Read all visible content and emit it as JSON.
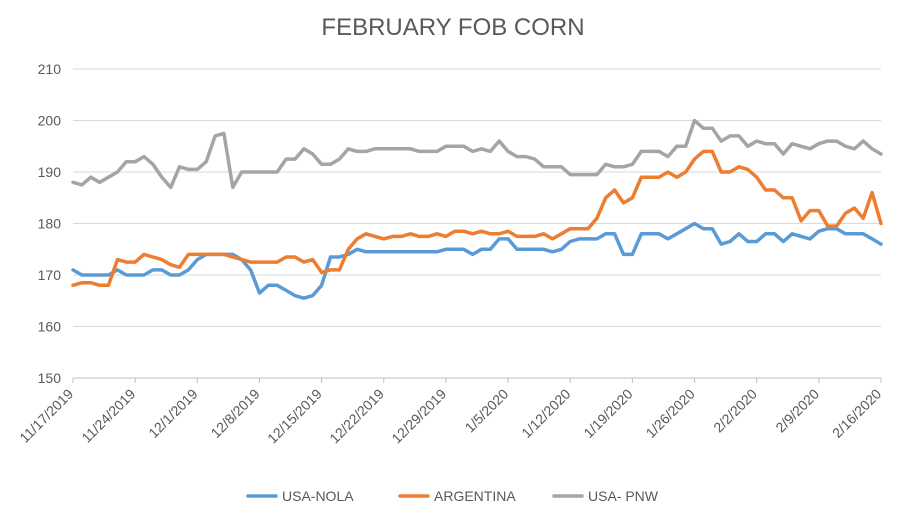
{
  "chart_data": {
    "type": "line",
    "title": "FEBRUARY FOB CORN",
    "xlabel": "",
    "ylabel": "",
    "ylim": [
      150,
      210
    ],
    "yticks": [
      150,
      160,
      170,
      180,
      190,
      200,
      210
    ],
    "xlim": [
      "2019-11-17",
      "2020-02-16"
    ],
    "xticks": [
      "11/17/2019",
      "11/24/2019",
      "12/1/2019",
      "12/8/2019",
      "12/15/2019",
      "12/22/2019",
      "12/29/2019",
      "1/5/2020",
      "1/12/2020",
      "1/19/2020",
      "1/26/2020",
      "2/2/2020",
      "2/9/2020",
      "2/16/2020"
    ],
    "grid": "horizontal",
    "legend": "bottom",
    "series": [
      {
        "name": "USA-NOLA",
        "color": "#5b9bd5",
        "points": [
          [
            "2019-11-17",
            171
          ],
          [
            "2019-11-18",
            170
          ],
          [
            "2019-11-19",
            170
          ],
          [
            "2019-11-20",
            170
          ],
          [
            "2019-11-21",
            170
          ],
          [
            "2019-11-22",
            171
          ],
          [
            "2019-11-23",
            170
          ],
          [
            "2019-11-24",
            170
          ],
          [
            "2019-11-25",
            170
          ],
          [
            "2019-11-26",
            171
          ],
          [
            "2019-11-27",
            171
          ],
          [
            "2019-11-28",
            170
          ],
          [
            "2019-11-29",
            170
          ],
          [
            "2019-11-30",
            171
          ],
          [
            "2019-12-01",
            173
          ],
          [
            "2019-12-02",
            174
          ],
          [
            "2019-12-03",
            174
          ],
          [
            "2019-12-04",
            174
          ],
          [
            "2019-12-05",
            174
          ],
          [
            "2019-12-06",
            173
          ],
          [
            "2019-12-07",
            171
          ],
          [
            "2019-12-08",
            166.5
          ],
          [
            "2019-12-09",
            168
          ],
          [
            "2019-12-10",
            168
          ],
          [
            "2019-12-11",
            167
          ],
          [
            "2019-12-12",
            166
          ],
          [
            "2019-12-13",
            165.5
          ],
          [
            "2019-12-14",
            166
          ],
          [
            "2019-12-15",
            168
          ],
          [
            "2019-12-16",
            173.5
          ],
          [
            "2019-12-17",
            173.5
          ],
          [
            "2019-12-18",
            174
          ],
          [
            "2019-12-19",
            175
          ],
          [
            "2019-12-20",
            174.5
          ],
          [
            "2019-12-21",
            174.5
          ],
          [
            "2019-12-22",
            174.5
          ],
          [
            "2019-12-23",
            174.5
          ],
          [
            "2019-12-24",
            174.5
          ],
          [
            "2019-12-25",
            174.5
          ],
          [
            "2019-12-26",
            174.5
          ],
          [
            "2019-12-27",
            174.5
          ],
          [
            "2019-12-28",
            174.5
          ],
          [
            "2019-12-29",
            175
          ],
          [
            "2019-12-30",
            175
          ],
          [
            "2019-12-31",
            175
          ],
          [
            "2020-01-01",
            174
          ],
          [
            "2020-01-02",
            175
          ],
          [
            "2020-01-03",
            175
          ],
          [
            "2020-01-04",
            177
          ],
          [
            "2020-01-05",
            177
          ],
          [
            "2020-01-06",
            175
          ],
          [
            "2020-01-07",
            175
          ],
          [
            "2020-01-08",
            175
          ],
          [
            "2020-01-09",
            175
          ],
          [
            "2020-01-10",
            174.5
          ],
          [
            "2020-01-11",
            175
          ],
          [
            "2020-01-12",
            176.5
          ],
          [
            "2020-01-13",
            177
          ],
          [
            "2020-01-14",
            177
          ],
          [
            "2020-01-15",
            177
          ],
          [
            "2020-01-16",
            178
          ],
          [
            "2020-01-17",
            178
          ],
          [
            "2020-01-18",
            174
          ],
          [
            "2020-01-19",
            174
          ],
          [
            "2020-01-20",
            178
          ],
          [
            "2020-01-21",
            178
          ],
          [
            "2020-01-22",
            178
          ],
          [
            "2020-01-23",
            177
          ],
          [
            "2020-01-24",
            178
          ],
          [
            "2020-01-25",
            179
          ],
          [
            "2020-01-26",
            180
          ],
          [
            "2020-01-27",
            179
          ],
          [
            "2020-01-28",
            179
          ],
          [
            "2020-01-29",
            176
          ],
          [
            "2020-01-30",
            176.5
          ],
          [
            "2020-01-31",
            178
          ],
          [
            "2020-02-01",
            176.5
          ],
          [
            "2020-02-02",
            176.5
          ],
          [
            "2020-02-03",
            178
          ],
          [
            "2020-02-04",
            178
          ],
          [
            "2020-02-05",
            176.5
          ],
          [
            "2020-02-06",
            178
          ],
          [
            "2020-02-07",
            177.5
          ],
          [
            "2020-02-08",
            177
          ],
          [
            "2020-02-09",
            178.5
          ],
          [
            "2020-02-10",
            179
          ],
          [
            "2020-02-11",
            179
          ],
          [
            "2020-02-12",
            178
          ],
          [
            "2020-02-13",
            178
          ],
          [
            "2020-02-14",
            178
          ],
          [
            "2020-02-15",
            177
          ],
          [
            "2020-02-16",
            176
          ]
        ]
      },
      {
        "name": "ARGENTINA",
        "color": "#ed7d31",
        "points": [
          [
            "2019-11-17",
            168
          ],
          [
            "2019-11-18",
            168.5
          ],
          [
            "2019-11-19",
            168.5
          ],
          [
            "2019-11-20",
            168
          ],
          [
            "2019-11-21",
            168
          ],
          [
            "2019-11-22",
            173
          ],
          [
            "2019-11-23",
            172.5
          ],
          [
            "2019-11-24",
            172.5
          ],
          [
            "2019-11-25",
            174
          ],
          [
            "2019-11-26",
            173.5
          ],
          [
            "2019-11-27",
            173
          ],
          [
            "2019-11-28",
            172
          ],
          [
            "2019-11-29",
            171.5
          ],
          [
            "2019-11-30",
            174
          ],
          [
            "2019-12-01",
            174
          ],
          [
            "2019-12-02",
            174
          ],
          [
            "2019-12-03",
            174
          ],
          [
            "2019-12-04",
            174
          ],
          [
            "2019-12-05",
            173.5
          ],
          [
            "2019-12-06",
            173
          ],
          [
            "2019-12-07",
            172.5
          ],
          [
            "2019-12-08",
            172.5
          ],
          [
            "2019-12-09",
            172.5
          ],
          [
            "2019-12-10",
            172.5
          ],
          [
            "2019-12-11",
            173.5
          ],
          [
            "2019-12-12",
            173.5
          ],
          [
            "2019-12-13",
            172.5
          ],
          [
            "2019-12-14",
            173
          ],
          [
            "2019-12-15",
            170.5
          ],
          [
            "2019-12-16",
            171
          ],
          [
            "2019-12-17",
            171
          ],
          [
            "2019-12-18",
            175
          ],
          [
            "2019-12-19",
            177
          ],
          [
            "2019-12-20",
            178
          ],
          [
            "2019-12-21",
            177.5
          ],
          [
            "2019-12-22",
            177
          ],
          [
            "2019-12-23",
            177.5
          ],
          [
            "2019-12-24",
            177.5
          ],
          [
            "2019-12-25",
            178
          ],
          [
            "2019-12-26",
            177.5
          ],
          [
            "2019-12-27",
            177.5
          ],
          [
            "2019-12-28",
            178
          ],
          [
            "2019-12-29",
            177.5
          ],
          [
            "2019-12-30",
            178.5
          ],
          [
            "2019-12-31",
            178.5
          ],
          [
            "2020-01-01",
            178
          ],
          [
            "2020-01-02",
            178.5
          ],
          [
            "2020-01-03",
            178
          ],
          [
            "2020-01-04",
            178
          ],
          [
            "2020-01-05",
            178.5
          ],
          [
            "2020-01-06",
            177.5
          ],
          [
            "2020-01-07",
            177.5
          ],
          [
            "2020-01-08",
            177.5
          ],
          [
            "2020-01-09",
            178
          ],
          [
            "2020-01-10",
            177
          ],
          [
            "2020-01-11",
            178
          ],
          [
            "2020-01-12",
            179
          ],
          [
            "2020-01-13",
            179
          ],
          [
            "2020-01-14",
            179
          ],
          [
            "2020-01-15",
            181
          ],
          [
            "2020-01-16",
            185
          ],
          [
            "2020-01-17",
            186.5
          ],
          [
            "2020-01-18",
            184
          ],
          [
            "2020-01-19",
            185
          ],
          [
            "2020-01-20",
            189
          ],
          [
            "2020-01-21",
            189
          ],
          [
            "2020-01-22",
            189
          ],
          [
            "2020-01-23",
            190
          ],
          [
            "2020-01-24",
            189
          ],
          [
            "2020-01-25",
            190
          ],
          [
            "2020-01-26",
            192.5
          ],
          [
            "2020-01-27",
            194
          ],
          [
            "2020-01-28",
            194
          ],
          [
            "2020-01-29",
            190
          ],
          [
            "2020-01-30",
            190
          ],
          [
            "2020-01-31",
            191
          ],
          [
            "2020-02-01",
            190.5
          ],
          [
            "2020-02-02",
            189
          ],
          [
            "2020-02-03",
            186.5
          ],
          [
            "2020-02-04",
            186.5
          ],
          [
            "2020-02-05",
            185
          ],
          [
            "2020-02-06",
            185
          ],
          [
            "2020-02-07",
            180.5
          ],
          [
            "2020-02-08",
            182.5
          ],
          [
            "2020-02-09",
            182.5
          ],
          [
            "2020-02-10",
            179.5
          ],
          [
            "2020-02-11",
            179.5
          ],
          [
            "2020-02-12",
            182
          ],
          [
            "2020-02-13",
            183
          ],
          [
            "2020-02-14",
            181
          ],
          [
            "2020-02-15",
            186
          ],
          [
            "2020-02-16",
            180
          ]
        ]
      },
      {
        "name": "USA- PNW",
        "color": "#a5a5a5",
        "points": [
          [
            "2019-11-17",
            188
          ],
          [
            "2019-11-18",
            187.5
          ],
          [
            "2019-11-19",
            189
          ],
          [
            "2019-11-20",
            188
          ],
          [
            "2019-11-21",
            189
          ],
          [
            "2019-11-22",
            190
          ],
          [
            "2019-11-23",
            192
          ],
          [
            "2019-11-24",
            192
          ],
          [
            "2019-11-25",
            193
          ],
          [
            "2019-11-26",
            191.5
          ],
          [
            "2019-11-27",
            189
          ],
          [
            "2019-11-28",
            187
          ],
          [
            "2019-11-29",
            191
          ],
          [
            "2019-11-30",
            190.5
          ],
          [
            "2019-12-01",
            190.5
          ],
          [
            "2019-12-02",
            192
          ],
          [
            "2019-12-03",
            197
          ],
          [
            "2019-12-04",
            197.5
          ],
          [
            "2019-12-05",
            187
          ],
          [
            "2019-12-06",
            190
          ],
          [
            "2019-12-07",
            190
          ],
          [
            "2019-12-08",
            190
          ],
          [
            "2019-12-09",
            190
          ],
          [
            "2019-12-10",
            190
          ],
          [
            "2019-12-11",
            192.5
          ],
          [
            "2019-12-12",
            192.5
          ],
          [
            "2019-12-13",
            194.5
          ],
          [
            "2019-12-14",
            193.5
          ],
          [
            "2019-12-15",
            191.5
          ],
          [
            "2019-12-16",
            191.5
          ],
          [
            "2019-12-17",
            192.5
          ],
          [
            "2019-12-18",
            194.5
          ],
          [
            "2019-12-19",
            194
          ],
          [
            "2019-12-20",
            194
          ],
          [
            "2019-12-21",
            194.5
          ],
          [
            "2019-12-22",
            194.5
          ],
          [
            "2019-12-23",
            194.5
          ],
          [
            "2019-12-24",
            194.5
          ],
          [
            "2019-12-25",
            194.5
          ],
          [
            "2019-12-26",
            194
          ],
          [
            "2019-12-27",
            194
          ],
          [
            "2019-12-28",
            194
          ],
          [
            "2019-12-29",
            195
          ],
          [
            "2019-12-30",
            195
          ],
          [
            "2019-12-31",
            195
          ],
          [
            "2020-01-01",
            194
          ],
          [
            "2020-01-02",
            194.5
          ],
          [
            "2020-01-03",
            194
          ],
          [
            "2020-01-04",
            196
          ],
          [
            "2020-01-05",
            194
          ],
          [
            "2020-01-06",
            193
          ],
          [
            "2020-01-07",
            193
          ],
          [
            "2020-01-08",
            192.5
          ],
          [
            "2020-01-09",
            191
          ],
          [
            "2020-01-10",
            191
          ],
          [
            "2020-01-11",
            191
          ],
          [
            "2020-01-12",
            189.5
          ],
          [
            "2020-01-13",
            189.5
          ],
          [
            "2020-01-14",
            189.5
          ],
          [
            "2020-01-15",
            189.5
          ],
          [
            "2020-01-16",
            191.5
          ],
          [
            "2020-01-17",
            191
          ],
          [
            "2020-01-18",
            191
          ],
          [
            "2020-01-19",
            191.5
          ],
          [
            "2020-01-20",
            194
          ],
          [
            "2020-01-21",
            194
          ],
          [
            "2020-01-22",
            194
          ],
          [
            "2020-01-23",
            193
          ],
          [
            "2020-01-24",
            195
          ],
          [
            "2020-01-25",
            195
          ],
          [
            "2020-01-26",
            200
          ],
          [
            "2020-01-27",
            198.5
          ],
          [
            "2020-01-28",
            198.5
          ],
          [
            "2020-01-29",
            196
          ],
          [
            "2020-01-30",
            197
          ],
          [
            "2020-01-31",
            197
          ],
          [
            "2020-02-01",
            195
          ],
          [
            "2020-02-02",
            196
          ],
          [
            "2020-02-03",
            195.5
          ],
          [
            "2020-02-04",
            195.5
          ],
          [
            "2020-02-05",
            193.5
          ],
          [
            "2020-02-06",
            195.5
          ],
          [
            "2020-02-07",
            195
          ],
          [
            "2020-02-08",
            194.5
          ],
          [
            "2020-02-09",
            195.5
          ],
          [
            "2020-02-10",
            196
          ],
          [
            "2020-02-11",
            196
          ],
          [
            "2020-02-12",
            195
          ],
          [
            "2020-02-13",
            194.5
          ],
          [
            "2020-02-14",
            196
          ],
          [
            "2020-02-15",
            194.5
          ],
          [
            "2020-02-16",
            193.5
          ]
        ]
      }
    ]
  }
}
